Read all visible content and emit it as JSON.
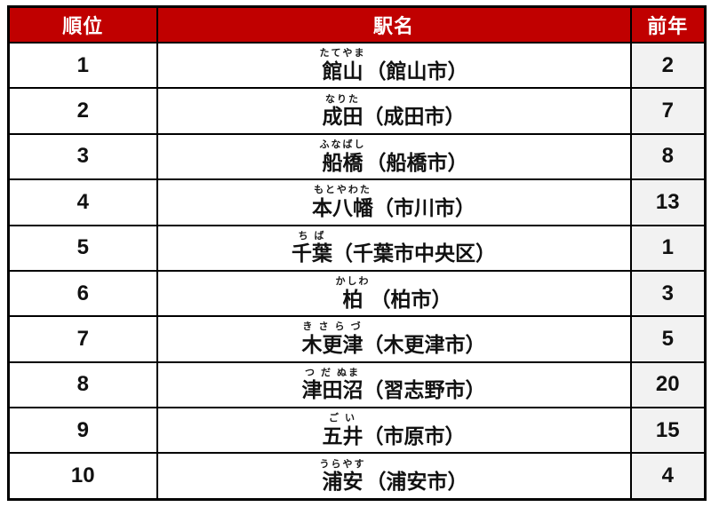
{
  "chart_data": {
    "type": "table",
    "columns": [
      "順位",
      "駅名",
      "前年"
    ],
    "rows": [
      {
        "rank": "1",
        "furigana": "たてやま",
        "station": "館山",
        "city": "（館山市）",
        "prev": "2"
      },
      {
        "rank": "2",
        "furigana": "なりた",
        "station": "成田",
        "city": "（成田市）",
        "prev": "7"
      },
      {
        "rank": "3",
        "furigana": "ふなばし",
        "station": "船橋",
        "city": "（船橋市）",
        "prev": "8"
      },
      {
        "rank": "4",
        "furigana": "もとやわた",
        "station": "本八幡",
        "city": "（市川市）",
        "prev": "13"
      },
      {
        "rank": "5",
        "furigana": "ち ば",
        "station": "千葉",
        "city": "（千葉市中央区）",
        "prev": "1"
      },
      {
        "rank": "6",
        "furigana": "かしわ",
        "station": "柏",
        "city": "（柏市）",
        "prev": "3"
      },
      {
        "rank": "7",
        "furigana": "き さ ら づ",
        "station": "木更津",
        "city": "（木更津市）",
        "prev": "5"
      },
      {
        "rank": "8",
        "furigana": "つ だ ぬま",
        "station": "津田沼",
        "city": "（習志野市）",
        "prev": "20"
      },
      {
        "rank": "9",
        "furigana": "ご い",
        "station": "五井",
        "city": "（市原市）",
        "prev": "15"
      },
      {
        "rank": "10",
        "furigana": "うらやす",
        "station": "浦安",
        "city": "（浦安市）",
        "prev": "4"
      }
    ]
  },
  "colors": {
    "header_bg": "#C00000",
    "header_text": "#FFFFFF",
    "prev_column_bg": "#F2F2F2",
    "border": "#000000",
    "body_text": "#111111"
  }
}
